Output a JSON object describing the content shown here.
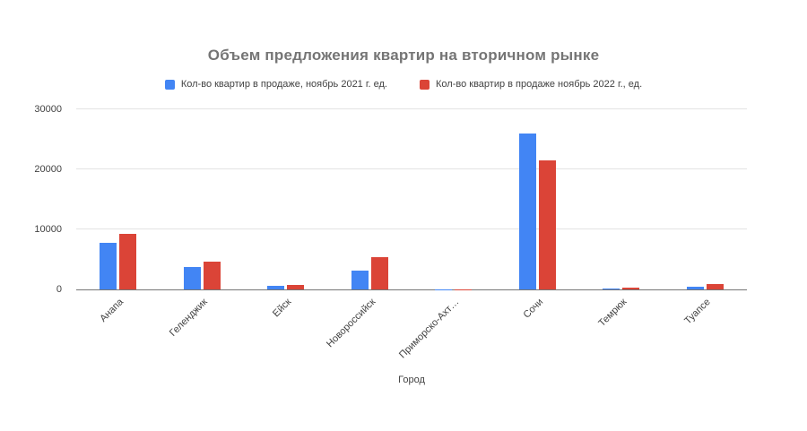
{
  "chart_data": {
    "type": "bar",
    "title": "Объем предложения квартир на вторичном рынке",
    "xlabel": "Город",
    "ylabel": "",
    "categories": [
      "Анапа",
      "Геленджик",
      "Ейск",
      "Новороссийск",
      "Приморско-Ахт…",
      "Сочи",
      "Темрюк",
      "Туапсе"
    ],
    "series": [
      {
        "name": "Кол-во квартир в продаже, ноябрь 2021 г. ед.",
        "color": "#4285F4",
        "values": [
          7700,
          3700,
          600,
          3200,
          40,
          26000,
          200,
          400
        ]
      },
      {
        "name": "Кол-во квартир в продаже ноябрь 2022 г., ед.",
        "color": "#DB4437",
        "values": [
          9200,
          4600,
          800,
          5400,
          70,
          21500,
          250,
          900
        ]
      }
    ],
    "ylim": [
      0,
      30000
    ],
    "yticks": [
      0,
      10000,
      20000,
      30000
    ],
    "grid": true,
    "legend_position": "top"
  }
}
